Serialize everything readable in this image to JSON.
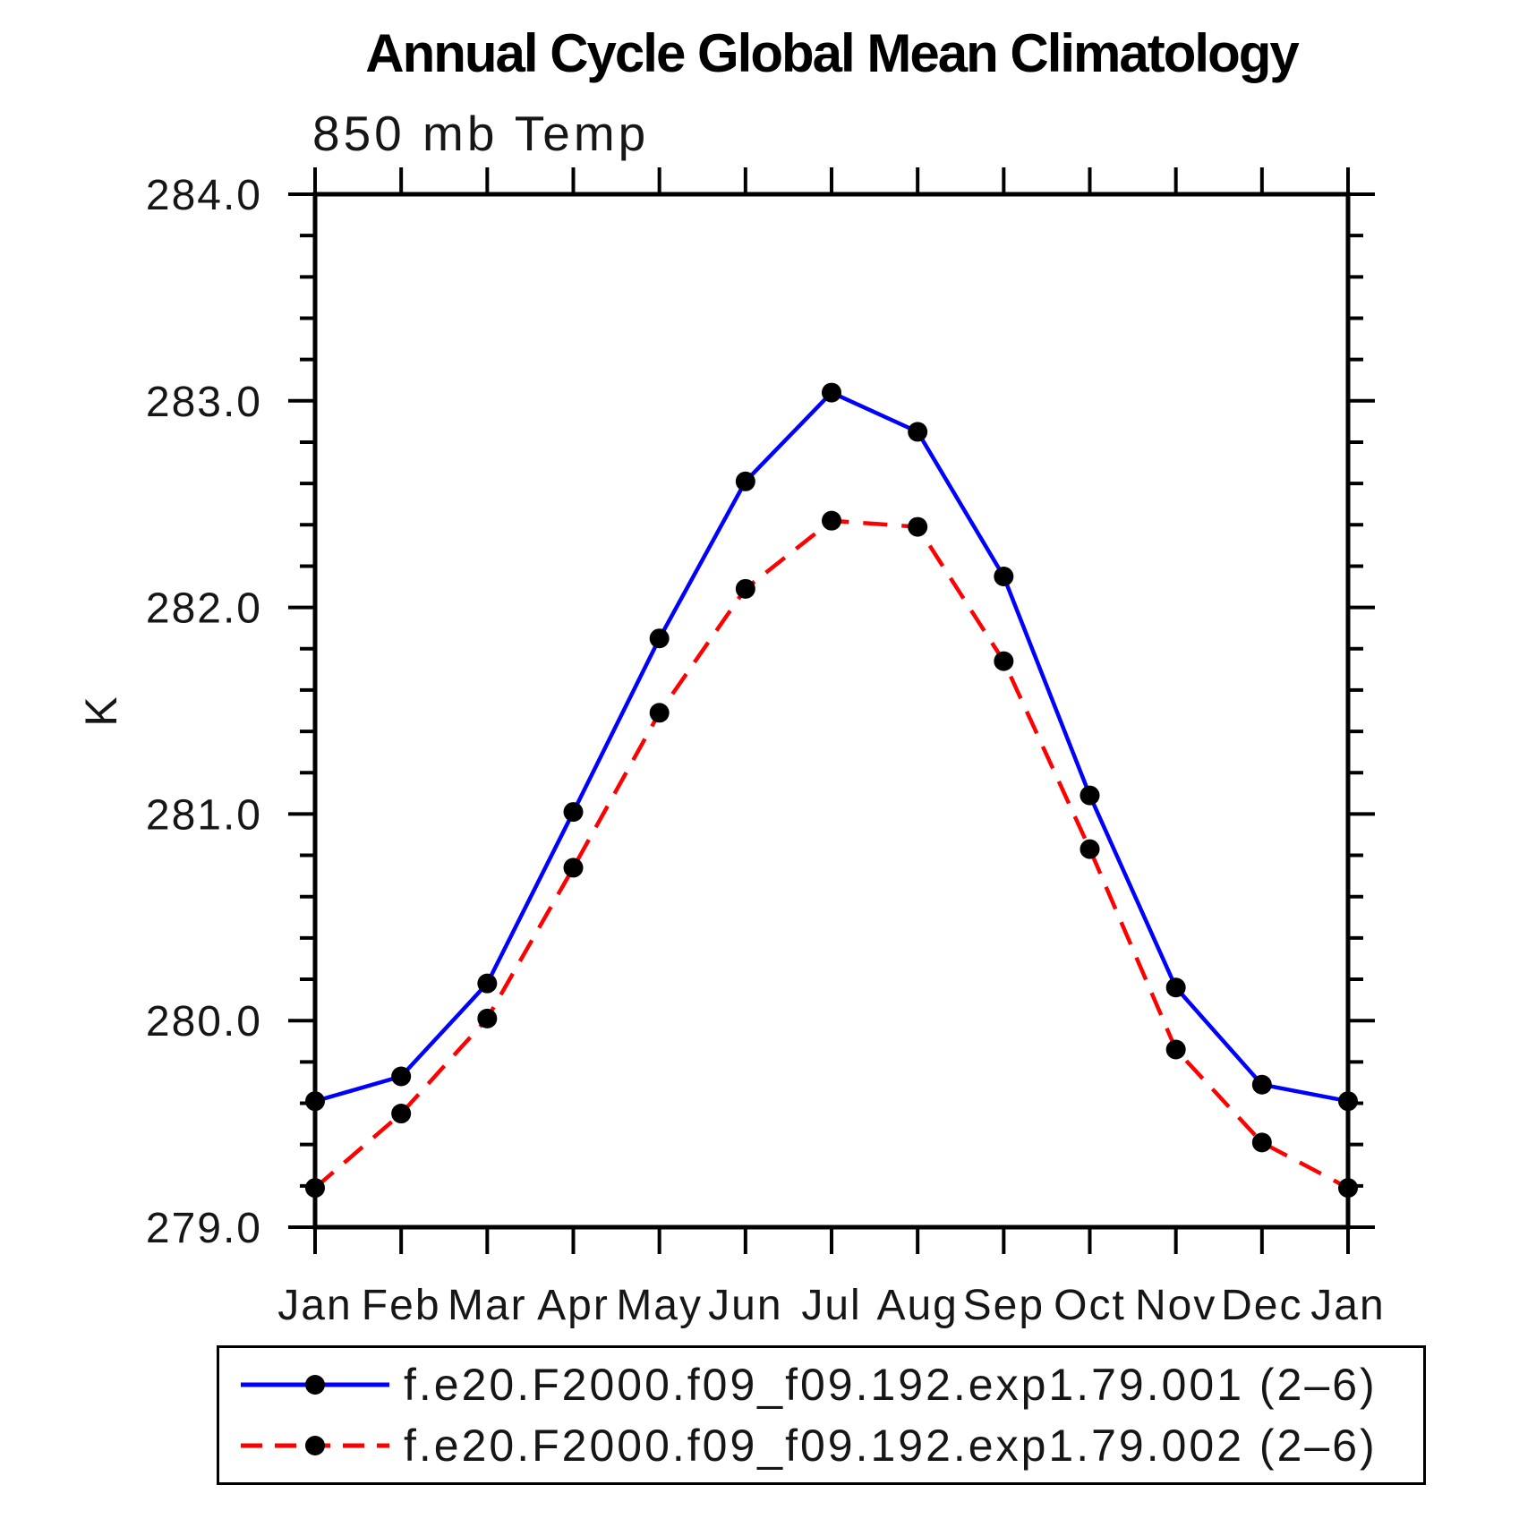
{
  "chart_data": {
    "type": "line",
    "title": "Annual Cycle Global Mean Climatology",
    "subtitle": "850 mb Temp",
    "ylabel": "K",
    "x_tick_labels": [
      "Jan",
      "Feb",
      "Mar",
      "Apr",
      "May",
      "Jun",
      "Jul",
      "Aug",
      "Sep",
      "Oct",
      "Nov",
      "Dec",
      "Jan"
    ],
    "ytick_labels": [
      "279.0",
      "280.0",
      "281.0",
      "282.0",
      "283.0",
      "284.0"
    ],
    "ylim": [
      279.0,
      284.0
    ],
    "ytick_major_step": 1.0,
    "ytick_minor_step": 0.2,
    "grid": false,
    "legend_position": "bottom",
    "axis_color": "#000000",
    "marker_color": "#000000",
    "series": [
      {
        "name": "f.e20.F2000.f09_f09.192.exp1.79.001 (2–6)",
        "color": "#0000ff",
        "line_style": "solid",
        "marker": "filled-circle",
        "values": [
          279.61,
          279.73,
          280.18,
          281.01,
          281.85,
          282.61,
          283.04,
          282.85,
          282.15,
          281.09,
          280.16,
          279.69,
          279.61
        ]
      },
      {
        "name": "f.e20.F2000.f09_f09.192.exp1.79.002 (2–6)",
        "color": "#ff0000",
        "line_style": "dashed",
        "marker": "filled-circle",
        "values": [
          279.19,
          279.55,
          280.01,
          280.74,
          281.49,
          282.09,
          282.42,
          282.39,
          281.74,
          280.83,
          279.86,
          279.41,
          279.19
        ]
      }
    ]
  }
}
